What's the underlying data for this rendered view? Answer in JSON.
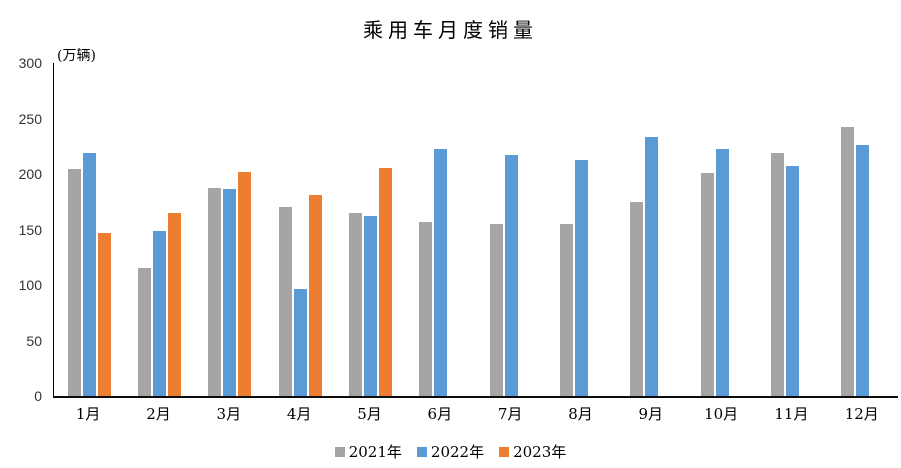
{
  "title": "乘用车月度销量",
  "y_axis": {
    "unit_label": "(万辆)",
    "ticks": [
      0,
      50,
      100,
      150,
      200,
      250,
      300
    ],
    "max": 300
  },
  "chart_data": {
    "type": "bar",
    "title": "乘用车月度销量",
    "ylabel": "(万辆)",
    "xlabel": "",
    "ylim": [
      0,
      300
    ],
    "grid": false,
    "legend_position": "bottom",
    "categories": [
      "1月",
      "2月",
      "3月",
      "4月",
      "5月",
      "6月",
      "7月",
      "8月",
      "9月",
      "10月",
      "11月",
      "12月"
    ],
    "series": [
      {
        "name": "2021年",
        "color": "#A5A5A5",
        "values": [
          204.5,
          115.6,
          187.4,
          170.4,
          164.6,
          156.9,
          155.1,
          155.2,
          175.1,
          200.7,
          219.2,
          242.2
        ]
      },
      {
        "name": "2022年",
        "color": "#5B9BD5",
        "values": [
          218.6,
          148.7,
          186.4,
          96.5,
          162.3,
          222.2,
          217.4,
          212.5,
          233.2,
          222.4,
          207.5,
          226.3
        ]
      },
      {
        "name": "2023年",
        "color": "#ED7D31",
        "values": [
          146.9,
          165.3,
          201.7,
          181.1,
          205.1,
          null,
          null,
          null,
          null,
          null,
          null,
          null
        ]
      }
    ]
  }
}
